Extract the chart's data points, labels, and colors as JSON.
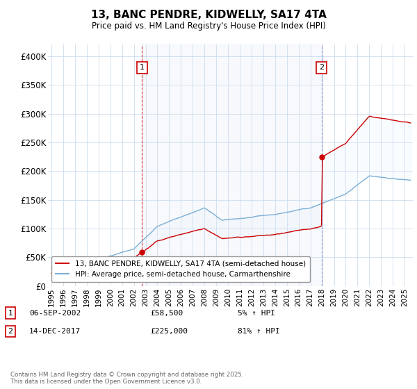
{
  "title": "13, BANC PENDRE, KIDWELLY, SA17 4TA",
  "subtitle": "Price paid vs. HM Land Registry's House Price Index (HPI)",
  "ylabel_ticks": [
    "£0",
    "£50K",
    "£100K",
    "£150K",
    "£200K",
    "£250K",
    "£300K",
    "£350K",
    "£400K"
  ],
  "ytick_values": [
    0,
    50000,
    100000,
    150000,
    200000,
    250000,
    300000,
    350000,
    400000
  ],
  "ylim": [
    0,
    420000
  ],
  "xlim_start": 1994.7,
  "xlim_end": 2025.7,
  "marker1_x": 2002.68,
  "marker1_y": 58500,
  "marker1_label": "1",
  "marker2_x": 2017.95,
  "marker2_y": 225000,
  "marker2_label": "2",
  "legend_line1": "13, BANC PENDRE, KIDWELLY, SA17 4TA (semi-detached house)",
  "legend_line2": "HPI: Average price, semi-detached house, Carmarthenshire",
  "footer": "Contains HM Land Registry data © Crown copyright and database right 2025.\nThis data is licensed under the Open Government Licence v3.0.",
  "color_red": "#cc0000",
  "color_blue": "#7bafd4",
  "color_vline1": "#cc0000",
  "color_vline2": "#8888cc",
  "color_fill": "#ddeeff",
  "background": "#ffffff",
  "grid_color": "#ccddee",
  "ann_date1": "06-SEP-2002",
  "ann_price1": "£58,500",
  "ann_hpi1": "5% ↑ HPI",
  "ann_date2": "14-DEC-2017",
  "ann_price2": "£225,000",
  "ann_hpi2": "81% ↑ HPI"
}
